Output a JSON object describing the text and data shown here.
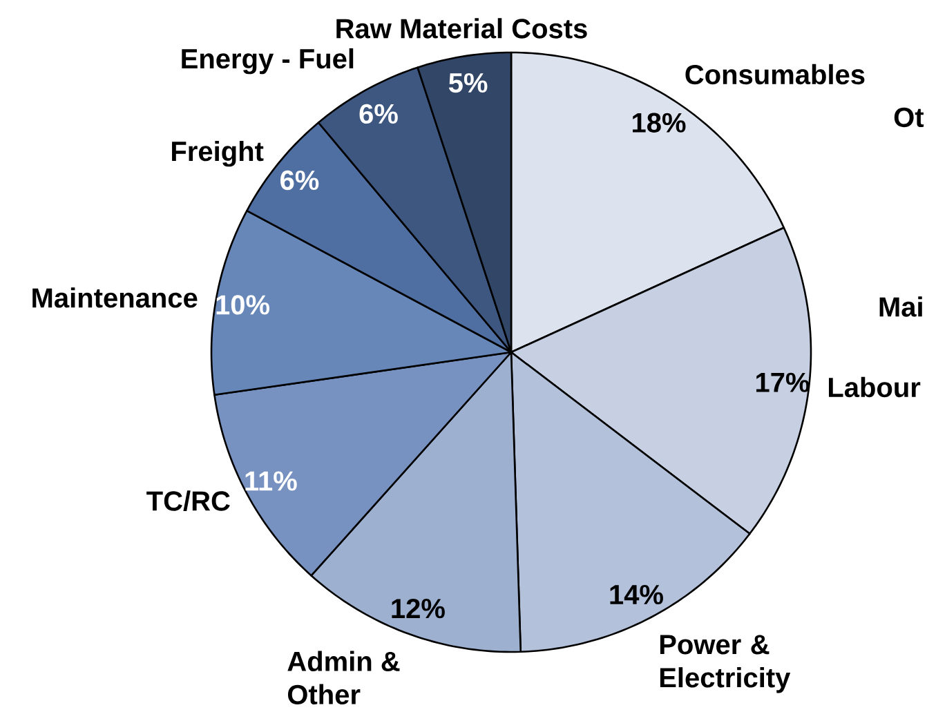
{
  "chart_data": {
    "type": "pie",
    "categories": [
      "Consumables",
      "Labour",
      "Power & Electricity",
      "Admin & Other",
      "TC/RC",
      "Maintenance",
      "Freight",
      "Energy - Fuel",
      "Raw Material Costs"
    ],
    "values": [
      18,
      17,
      14,
      12,
      11,
      10,
      6,
      6,
      5
    ],
    "value_labels": [
      "18%",
      "17%",
      "14%",
      "12%",
      "11%",
      "10%",
      "6%",
      "6%",
      "5%"
    ],
    "colors": [
      "#dde3ee",
      "#c6d0e2",
      "#b3c1da",
      "#9db0cf",
      "#7791c0",
      "#6787b8",
      "#4f6ea1",
      "#3e5781",
      "#324767"
    ],
    "annotations": [
      "Ot",
      "Mai"
    ]
  }
}
